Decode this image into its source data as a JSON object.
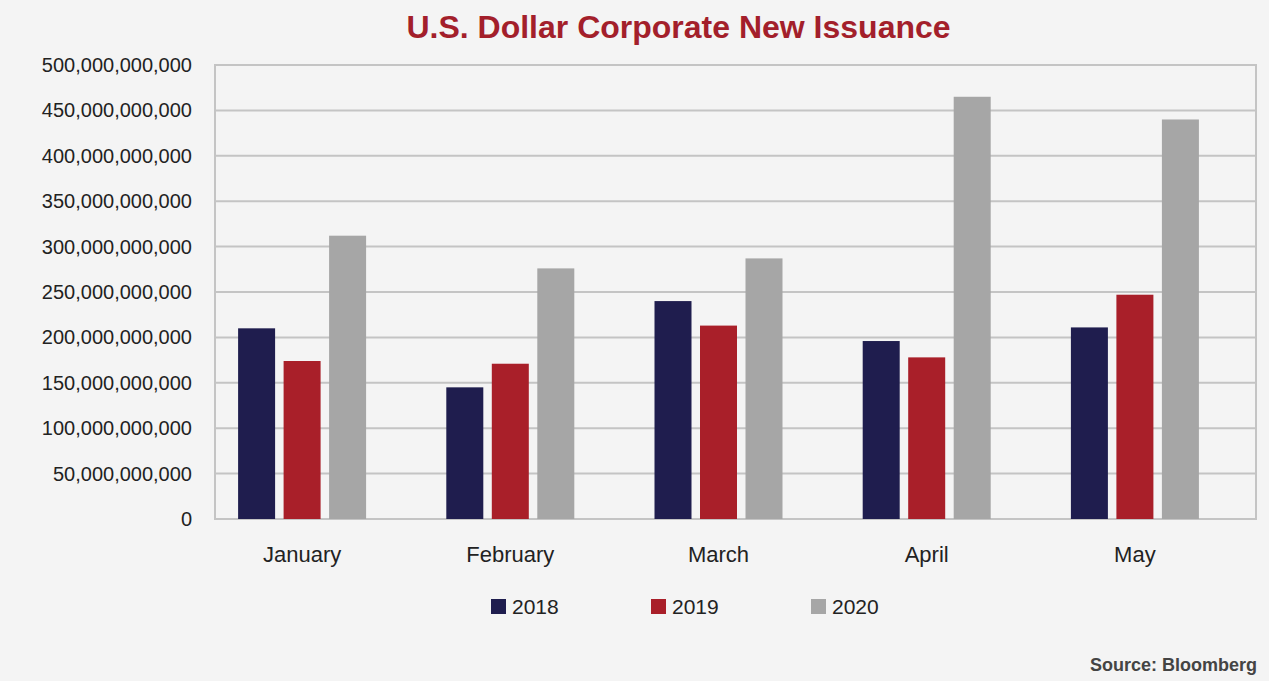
{
  "chart_data": {
    "type": "bar",
    "title": "U.S. Dollar Corporate New Issuance",
    "categories": [
      "January",
      "February",
      "March",
      "April",
      "May"
    ],
    "series": [
      {
        "name": "2018",
        "color": "#1f1d4e",
        "values": [
          210000000000,
          145000000000,
          240000000000,
          196000000000,
          211000000000
        ]
      },
      {
        "name": "2019",
        "color": "#a91f29",
        "values": [
          174000000000,
          171000000000,
          213000000000,
          178000000000,
          247000000000
        ]
      },
      {
        "name": "2020",
        "color": "#a6a6a6",
        "values": [
          312000000000,
          276000000000,
          287000000000,
          465000000000,
          440000000000
        ]
      }
    ],
    "ylim": [
      0,
      500000000000
    ],
    "yticks": [
      0,
      {
        "value": 50000000000,
        "label": "50,000,000,000"
      },
      {
        "value": 100000000000,
        "label": "100,000,000,000"
      },
      {
        "value": 150000000000,
        "label": "150,000,000,000"
      },
      {
        "value": 200000000000,
        "label": "200,000,000,000"
      },
      {
        "value": 250000000000,
        "label": "250,000,000,000"
      },
      {
        "value": 300000000000,
        "label": "300,000,000,000"
      },
      {
        "value": 350000000000,
        "label": "350,000,000,000"
      },
      {
        "value": 400000000000,
        "label": "400,000,000,000"
      },
      {
        "value": 450000000000,
        "label": "450,000,000,000"
      },
      {
        "value": 500000000000,
        "label": "500,000,000,000"
      }
    ],
    "grid": true,
    "legend": "bottom",
    "annotations": [
      "Source: Bloomberg"
    ]
  }
}
